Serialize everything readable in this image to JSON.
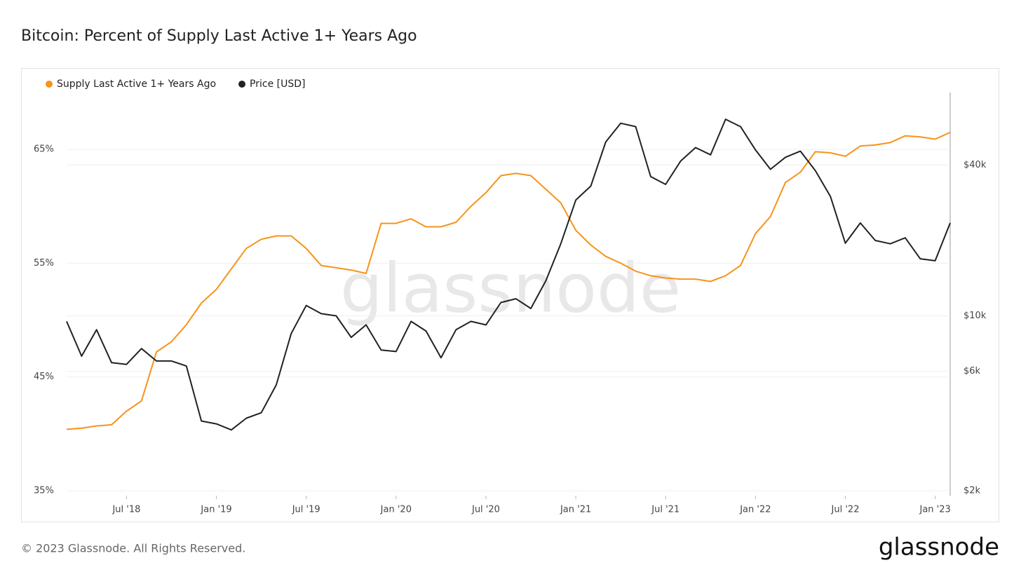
{
  "chart_data": {
    "type": "line",
    "title": "Bitcoin: Percent of Supply Last Active 1+ Years Ago",
    "watermark": "glassnode",
    "x": [
      "2018-03",
      "2018-04",
      "2018-05",
      "2018-06",
      "2018-07",
      "2018-08",
      "2018-09",
      "2018-10",
      "2018-11",
      "2018-12",
      "2019-01",
      "2019-02",
      "2019-03",
      "2019-04",
      "2019-05",
      "2019-06",
      "2019-07",
      "2019-08",
      "2019-09",
      "2019-10",
      "2019-11",
      "2019-12",
      "2020-01",
      "2020-02",
      "2020-03",
      "2020-04",
      "2020-05",
      "2020-06",
      "2020-07",
      "2020-08",
      "2020-09",
      "2020-10",
      "2020-11",
      "2020-12",
      "2021-01",
      "2021-02",
      "2021-03",
      "2021-04",
      "2021-05",
      "2021-06",
      "2021-07",
      "2021-08",
      "2021-09",
      "2021-10",
      "2021-11",
      "2021-12",
      "2022-01",
      "2022-02",
      "2022-03",
      "2022-04",
      "2022-05",
      "2022-06",
      "2022-07",
      "2022-08",
      "2022-09",
      "2022-10",
      "2022-11",
      "2022-12",
      "2023-01",
      "2023-02"
    ],
    "xlim": [
      "2018-03",
      "2023-02"
    ],
    "xticks": [
      {
        "value": "2018-07",
        "label": "Jul '18"
      },
      {
        "value": "2019-01",
        "label": "Jan '19"
      },
      {
        "value": "2019-07",
        "label": "Jul '19"
      },
      {
        "value": "2020-01",
        "label": "Jan '20"
      },
      {
        "value": "2020-07",
        "label": "Jul '20"
      },
      {
        "value": "2021-01",
        "label": "Jan '21"
      },
      {
        "value": "2021-07",
        "label": "Jul '21"
      },
      {
        "value": "2022-01",
        "label": "Jan '22"
      },
      {
        "value": "2022-07",
        "label": "Jul '22"
      },
      {
        "value": "2023-01",
        "label": "Jan '23"
      }
    ],
    "ylim": [
      35,
      70
    ],
    "yticks": [
      {
        "value": 35,
        "label": "35%"
      },
      {
        "value": 45,
        "label": "45%"
      },
      {
        "value": 55,
        "label": "55%"
      },
      {
        "value": 65,
        "label": "65%"
      }
    ],
    "y2lim": [
      2000,
      78000
    ],
    "y2scale": "log",
    "y2ticks": [
      {
        "value": 2000,
        "label": "$2k"
      },
      {
        "value": 6000,
        "label": "$6k"
      },
      {
        "value": 10000,
        "label": "$10k"
      },
      {
        "value": 40000,
        "label": "$40k"
      }
    ],
    "grid": true,
    "series": [
      {
        "name": "Supply Last Active 1+ Years Ago",
        "color": "#f7931a",
        "axis": "y",
        "values": [
          40.4,
          40.5,
          40.7,
          40.8,
          42.0,
          42.9,
          47.2,
          48.1,
          49.6,
          51.5,
          52.7,
          54.5,
          56.3,
          57.1,
          57.4,
          57.4,
          56.3,
          54.8,
          54.6,
          54.4,
          54.1,
          58.5,
          58.5,
          58.9,
          58.2,
          58.2,
          58.6,
          60.0,
          61.2,
          62.7,
          62.9,
          62.7,
          61.5,
          60.3,
          57.9,
          56.6,
          55.6,
          55.0,
          54.3,
          53.9,
          53.7,
          53.6,
          53.6,
          53.4,
          53.9,
          54.8,
          57.6,
          59.1,
          62.1,
          63.0,
          64.8,
          64.7,
          64.4,
          65.3,
          65.4,
          65.6,
          66.2,
          66.1,
          65.9,
          66.5
        ]
      },
      {
        "name": "Price [USD]",
        "color": "#222222",
        "axis": "y2",
        "values": [
          9500,
          6900,
          8800,
          6500,
          6400,
          7400,
          6600,
          6600,
          6300,
          3800,
          3700,
          3500,
          3900,
          4100,
          5300,
          8500,
          11000,
          10200,
          10000,
          8200,
          9200,
          7300,
          7200,
          9500,
          8700,
          6800,
          8800,
          9500,
          9200,
          11300,
          11700,
          10700,
          13800,
          19400,
          29000,
          33000,
          49500,
          58800,
          57000,
          36000,
          33500,
          41500,
          47000,
          44000,
          61000,
          57000,
          46000,
          38500,
          43000,
          45500,
          38000,
          30000,
          19500,
          23500,
          20000,
          19400,
          20500,
          16900,
          16600,
          23500
        ]
      }
    ]
  },
  "footer": {
    "copyright": "© 2023 Glassnode. All Rights Reserved.",
    "logo": "glassnode"
  }
}
